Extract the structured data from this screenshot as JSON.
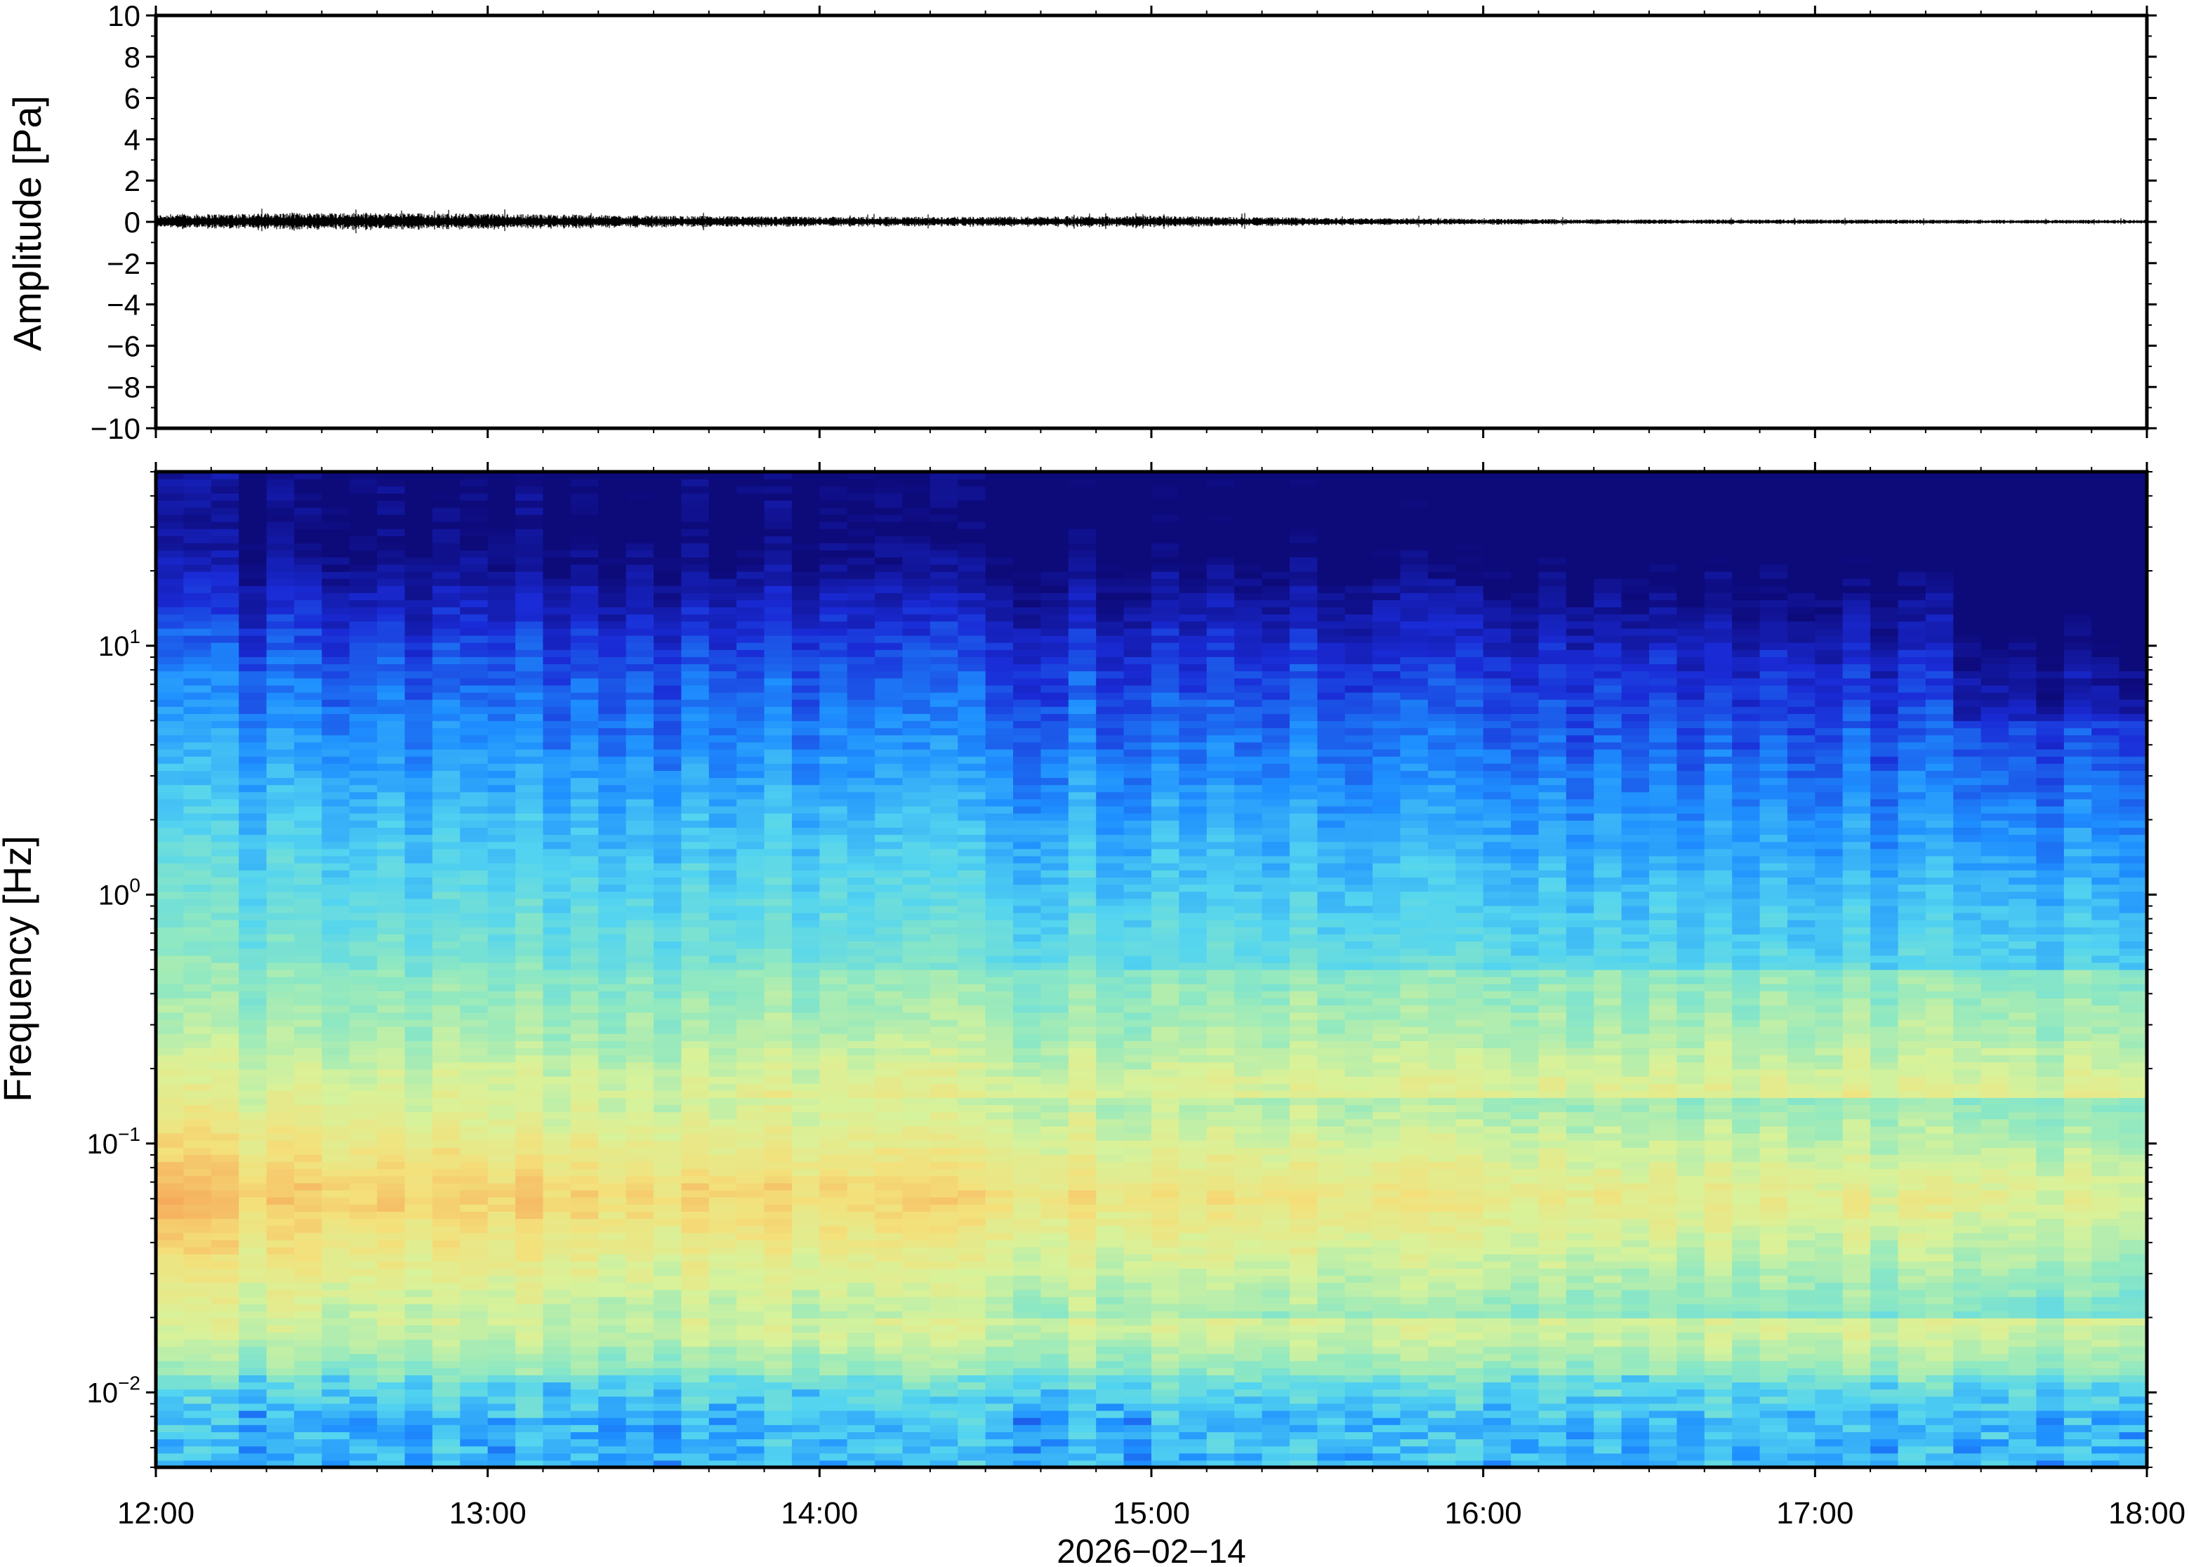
{
  "chart_data": [
    {
      "type": "line",
      "title": "",
      "ylabel": "Amplitude [Pa]",
      "xlabel": "",
      "ylim": [
        -10,
        10
      ],
      "yticks": [
        10,
        8,
        6,
        4,
        2,
        0,
        -2,
        -4,
        -6,
        -8,
        -10
      ],
      "ytick_labels": [
        "10",
        "8",
        "6",
        "4",
        "2",
        "0",
        "−2",
        "−4",
        "−6",
        "−8",
        "−10"
      ],
      "x_range": [
        "12:00",
        "18:00"
      ],
      "series": [
        {
          "envelope_hours": [
            0.0,
            0.5,
            1.0,
            1.5,
            2.0,
            2.5,
            3.0,
            3.5,
            4.0,
            4.5,
            5.0,
            5.5,
            6.0
          ],
          "envelope_pa": [
            0.35,
            0.45,
            0.4,
            0.3,
            0.25,
            0.25,
            0.3,
            0.2,
            0.15,
            0.12,
            0.12,
            0.1,
            0.1
          ]
        }
      ]
    },
    {
      "type": "heatmap",
      "title": "",
      "ylabel": "Frequency [Hz]",
      "xlabel": "2026−02−14",
      "yscale": "log",
      "ylim": [
        0.005,
        50
      ],
      "yticks": [
        0.01,
        0.1,
        1,
        10
      ],
      "ytick_labels": [
        {
          "base": "10",
          "exp": "−2"
        },
        {
          "base": "10",
          "exp": "−1"
        },
        {
          "base": "10",
          "exp": "0"
        },
        {
          "base": "10",
          "exp": "1"
        }
      ],
      "xticks": [
        "12:00",
        "13:00",
        "14:00",
        "15:00",
        "16:00",
        "17:00",
        "18:00"
      ],
      "colormap": [
        "#0d0a7a",
        "#1a2bd6",
        "#1e8fff",
        "#53d4f0",
        "#8ee8c2",
        "#d8f29a",
        "#f4e07a",
        "#f6a85a",
        "#ef6a3a"
      ],
      "description_bands": [
        {
          "freq_range": [
            15,
            50
          ],
          "level": 0.02
        },
        {
          "freq_range": [
            5,
            15
          ],
          "level": 0.2
        },
        {
          "freq_range": [
            0.5,
            5
          ],
          "level": 0.38
        },
        {
          "freq_range": [
            0.15,
            0.5
          ],
          "level": 0.55
        },
        {
          "freq_range": [
            0.025,
            0.15
          ],
          "level": 0.82
        },
        {
          "freq_range": [
            0.012,
            0.025
          ],
          "level": 0.6
        },
        {
          "freq_range": [
            0.005,
            0.012
          ],
          "level": 0.38
        }
      ]
    }
  ]
}
